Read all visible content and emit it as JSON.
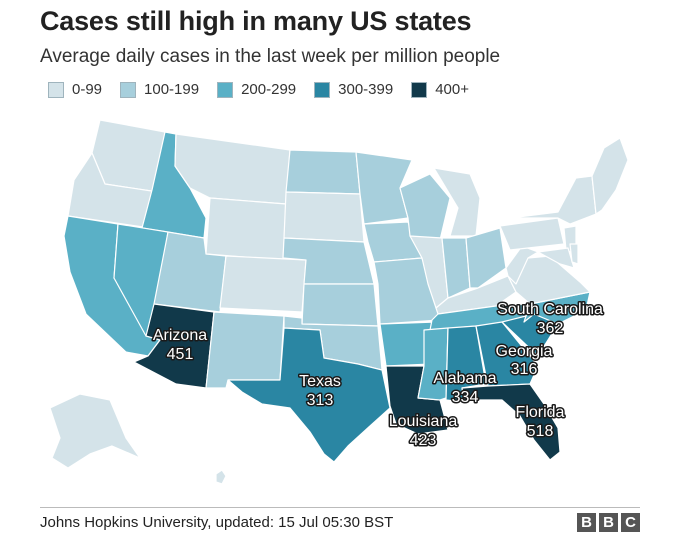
{
  "title": "Cases still high in many US states",
  "subtitle": "Average daily cases in the last week per million people",
  "legend": [
    {
      "label": "0-99",
      "color": "#d4e3e9"
    },
    {
      "label": "100-199",
      "color": "#a7cfdc"
    },
    {
      "label": "200-299",
      "color": "#5ab0c6"
    },
    {
      "label": "300-399",
      "color": "#2a86a3"
    },
    {
      "label": "400+",
      "color": "#11394a"
    }
  ],
  "labels": {
    "arizona": {
      "name": "Arizona",
      "value": "451"
    },
    "texas": {
      "name": "Texas",
      "value": "313"
    },
    "louisiana": {
      "name": "Louisiana",
      "value": "423"
    },
    "alabama": {
      "name": "Alabama",
      "value": "334"
    },
    "georgia": {
      "name": "Georgia",
      "value": "316"
    },
    "florida": {
      "name": "Florida",
      "value": "518"
    },
    "south_carolina": {
      "name": "South Carolina",
      "value": "362"
    }
  },
  "source": "Johns Hopkins University, updated: 15 Jul 05:30 BST",
  "logo": [
    "B",
    "B",
    "C"
  ]
}
